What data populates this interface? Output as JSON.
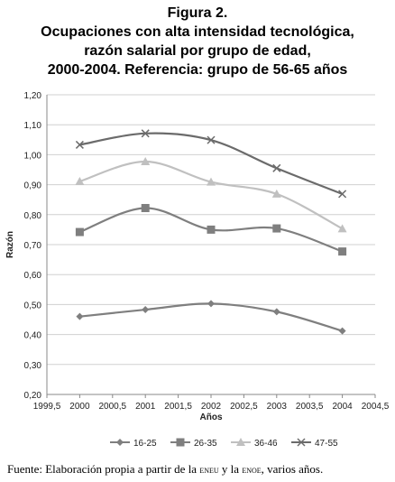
{
  "figure_label": "Figura 2.",
  "title_lines": [
    "Ocupaciones con alta intensidad tecnológica,",
    "razón salarial por grupo de edad,",
    "2000-2004. Referencia: grupo de 56-65 años"
  ],
  "source": {
    "prefix": "Fuente: Elaboración propia a partir de la ",
    "eneu": "eneu",
    "middle": " y la ",
    "enoe": "enoe",
    "suffix": ", varios años."
  },
  "chart_data": {
    "type": "line",
    "xlabel": "Años",
    "ylabel": "Razón",
    "xlim": [
      1999.5,
      2004.5
    ],
    "ylim": [
      0.2,
      1.2
    ],
    "x_ticks": [
      "1999,5",
      "2000",
      "2000,5",
      "2001",
      "2001,5",
      "2002",
      "2002,5",
      "2003",
      "2003,5",
      "2004",
      "2004,5"
    ],
    "y_ticks": [
      "0,20",
      "0,30",
      "0,40",
      "0,50",
      "0,60",
      "0,70",
      "0,80",
      "0,90",
      "1,00",
      "1,10",
      "1,20"
    ],
    "grid": true,
    "legend_position": "bottom",
    "smooth": true,
    "x": [
      2000,
      2001,
      2002,
      2003,
      2004
    ],
    "series": [
      {
        "name": "16-25",
        "marker": "diamond",
        "color": "#7f7f7f",
        "values": [
          0.46,
          0.483,
          0.503,
          0.476,
          0.412
        ]
      },
      {
        "name": "26-35",
        "marker": "square",
        "color": "#7f7f7f",
        "values": [
          0.742,
          0.822,
          0.75,
          0.754,
          0.677
        ]
      },
      {
        "name": "36-46",
        "marker": "triangle",
        "color": "#c0c0c0",
        "values": [
          0.911,
          0.977,
          0.909,
          0.869,
          0.753
        ]
      },
      {
        "name": "47-55",
        "marker": "x",
        "color": "#6b6b6b",
        "values": [
          1.033,
          1.071,
          1.049,
          0.955,
          0.869
        ]
      }
    ]
  }
}
